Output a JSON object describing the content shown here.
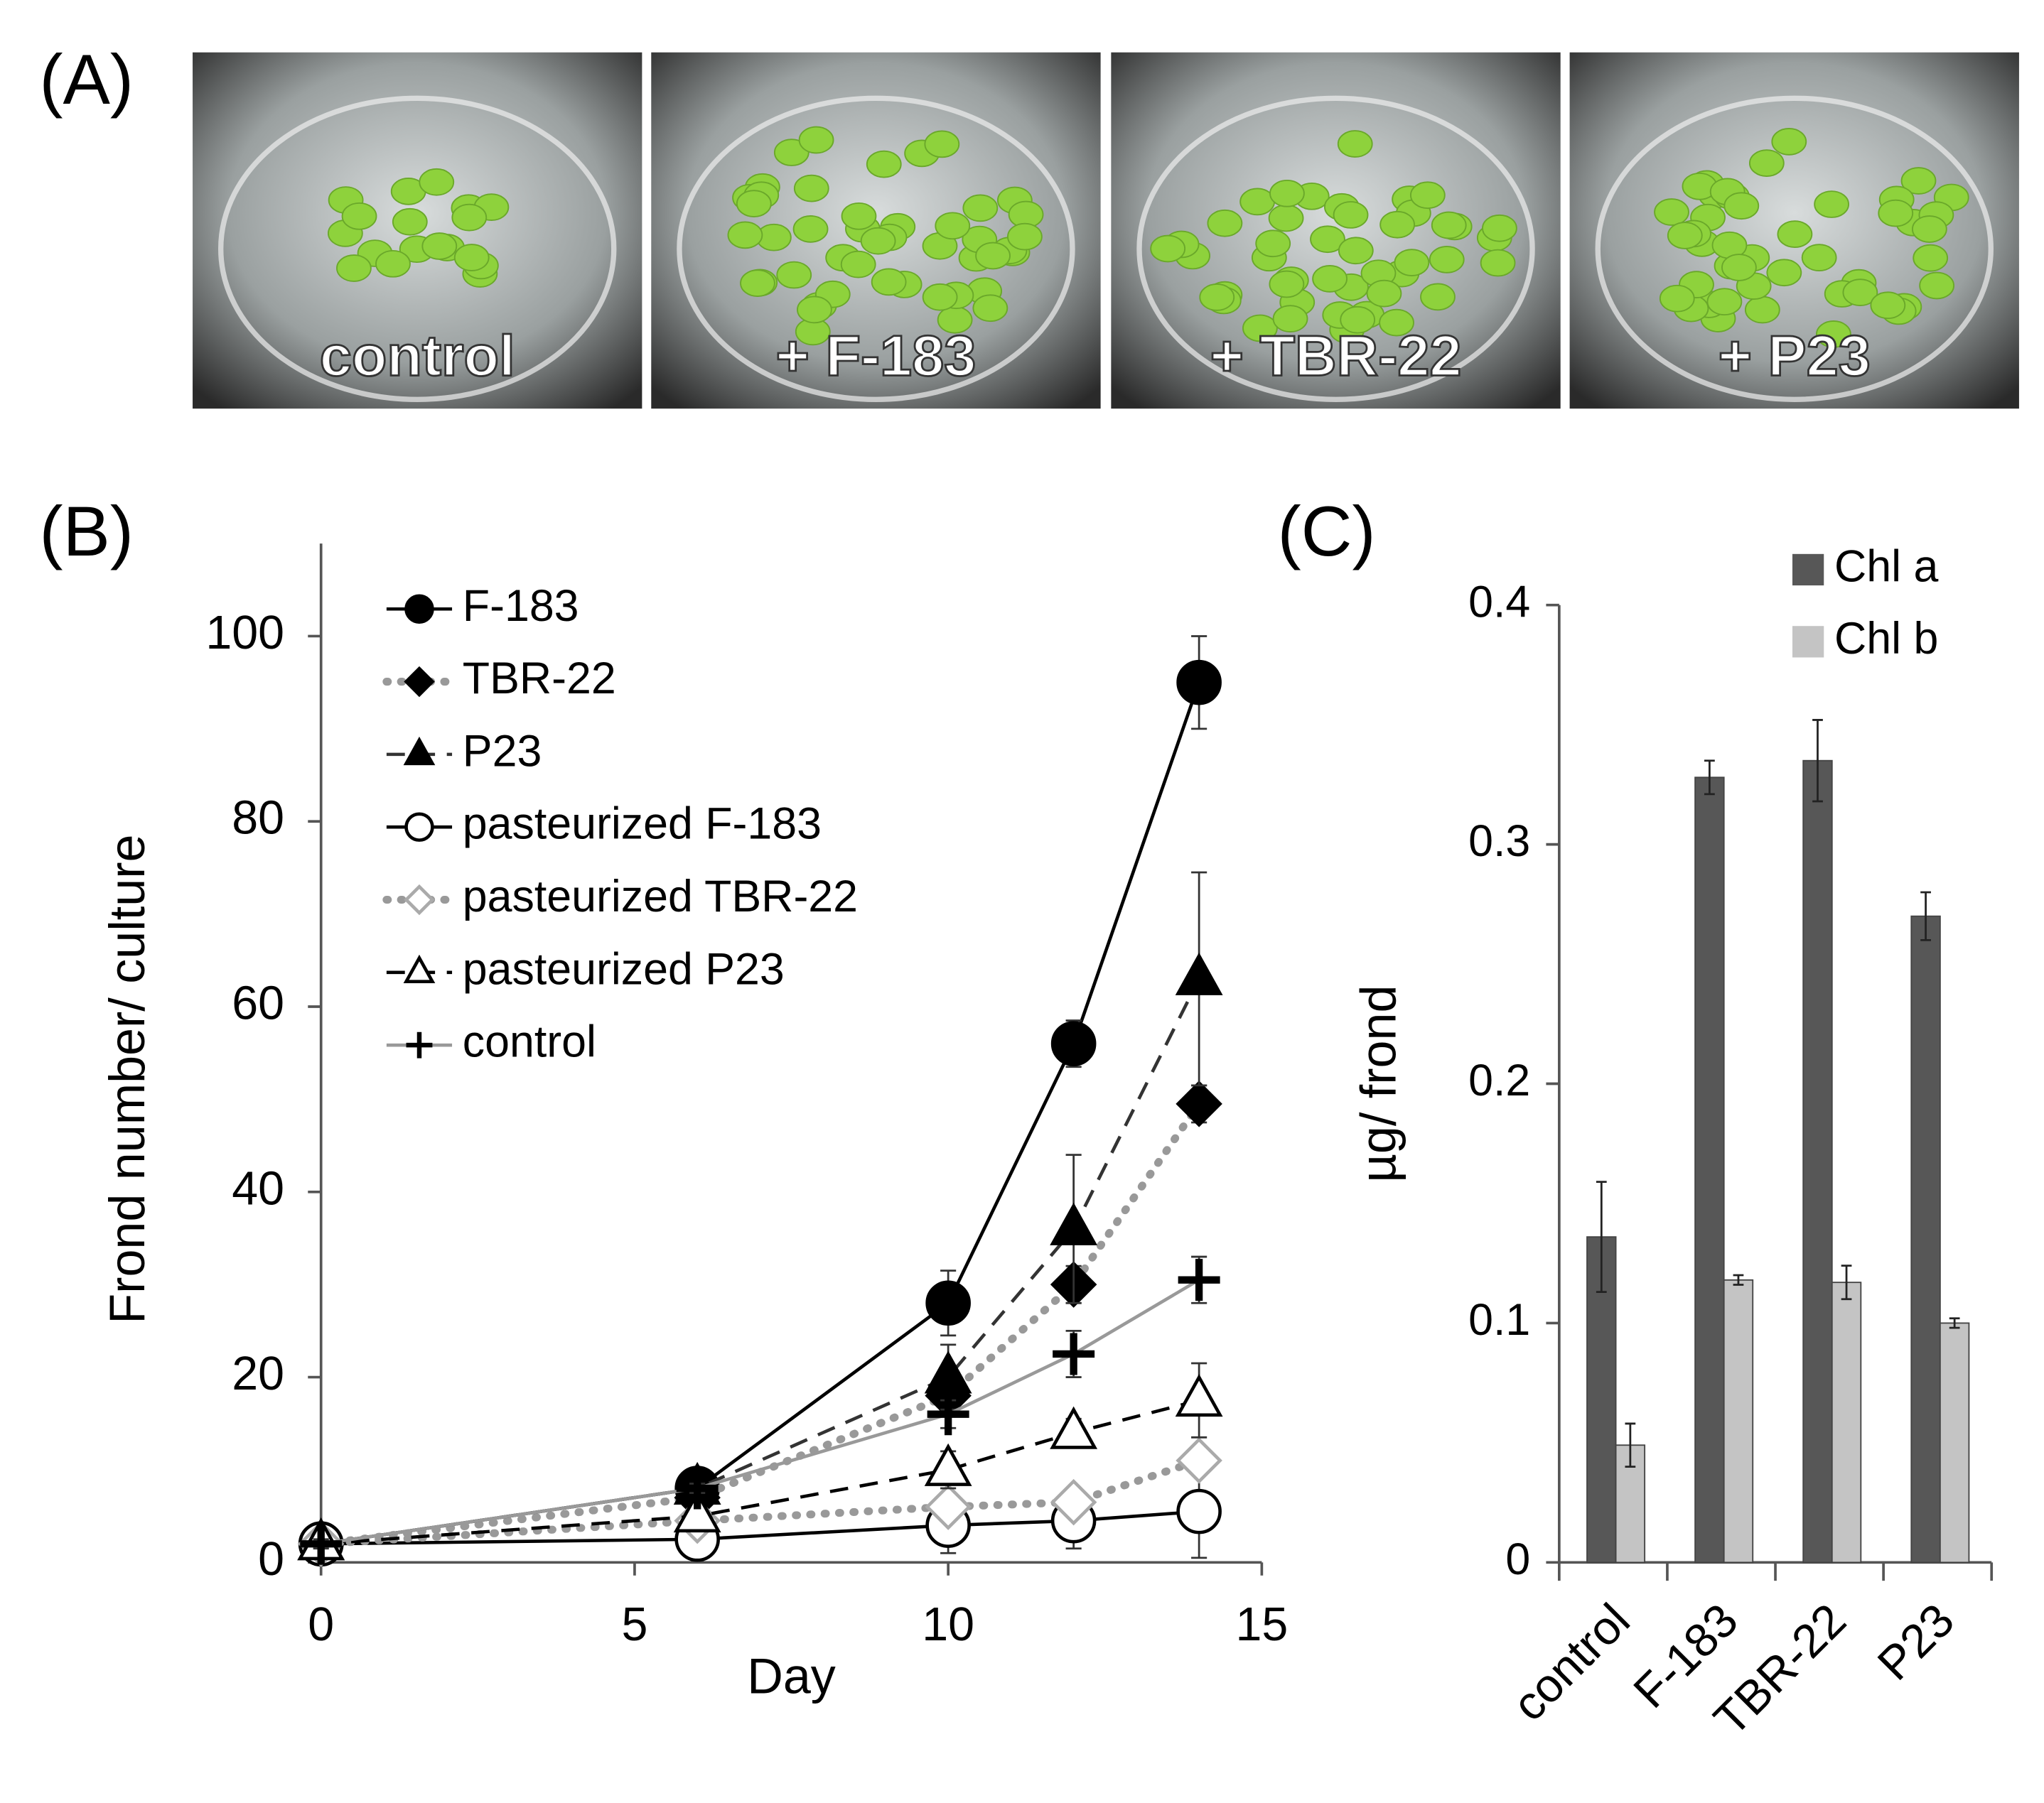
{
  "panel_labels": [
    "(A)",
    "(B)",
    "(C)"
  ],
  "photos": [
    "control",
    "+ F-183",
    "+ TBR-22",
    "+ P23"
  ],
  "chart_data": [
    {
      "type": "line",
      "xlabel": "Day",
      "ylabel": "Frond number/ culture",
      "x": [
        0,
        6,
        10,
        12,
        14
      ],
      "xlim": [
        0,
        15
      ],
      "ylim": [
        0,
        110
      ],
      "xticks": [
        0,
        5,
        10,
        15
      ],
      "yticks": [
        0,
        20,
        40,
        60,
        80,
        100
      ],
      "series": [
        {
          "name": "F-183",
          "color": "#000000",
          "marker": "circle",
          "filled": true,
          "line_style": "solid",
          "values": [
            2,
            8,
            28,
            56,
            95
          ],
          "errors": [
            0.5,
            1,
            3.5,
            2.5,
            5
          ]
        },
        {
          "name": "TBR-22",
          "color": "#999999",
          "marker": "diamond",
          "filled": true,
          "line_style": "dotted",
          "values": [
            2,
            7,
            18,
            30,
            49.5
          ],
          "errors": [
            0.5,
            1,
            2,
            2,
            2
          ]
        },
        {
          "name": "P23",
          "color": "#333333",
          "marker": "triangle",
          "filled": true,
          "line_style": "dashed",
          "values": [
            2,
            8,
            20,
            36,
            63
          ],
          "errors": [
            0.5,
            1,
            3.5,
            8,
            11.5
          ]
        },
        {
          "name": "pasteurized F-183",
          "color": "#000000",
          "marker": "circle",
          "filled": false,
          "line_style": "solid",
          "values": [
            2,
            2.5,
            4,
            4.5,
            5.5
          ],
          "errors": [
            0.5,
            0.5,
            3,
            3,
            5
          ]
        },
        {
          "name": "pasteurized TBR-22",
          "color": "#999999",
          "marker": "diamond",
          "filled": false,
          "line_style": "dotted",
          "values": [
            2,
            4.5,
            6,
            6.5,
            11
          ],
          "errors": [
            0.5,
            0.5,
            1,
            1,
            1.5
          ]
        },
        {
          "name": "pasteurized P23",
          "color": "#000000",
          "marker": "triangle",
          "filled": false,
          "line_style": "dashed",
          "values": [
            2,
            5,
            10,
            14,
            17.5
          ],
          "errors": [
            0.5,
            0.5,
            2,
            1.5,
            4
          ]
        },
        {
          "name": "control",
          "color": "#999999",
          "marker": "plus",
          "filled": true,
          "line_style": "solid",
          "values": [
            2,
            8,
            16,
            22.5,
            30.5
          ],
          "errors": [
            0.5,
            0.5,
            1.5,
            2.5,
            2.5
          ]
        }
      ]
    },
    {
      "type": "bar",
      "ylabel": "µg/ frond",
      "categories": [
        "control",
        "F-183",
        "TBR-22",
        "P23"
      ],
      "ylim": [
        0,
        0.4
      ],
      "yticks": [
        0,
        0.1,
        0.2,
        0.3,
        0.4
      ],
      "legend": "top-right",
      "series": [
        {
          "name": "Chl a",
          "color": "#575757",
          "values": [
            0.136,
            0.328,
            0.335,
            0.27
          ],
          "errors": [
            0.023,
            0.007,
            0.017,
            0.01
          ]
        },
        {
          "name": "Chl b",
          "color": "#c4c4c4",
          "values": [
            0.049,
            0.118,
            0.117,
            0.1
          ],
          "errors": [
            0.009,
            0.002,
            0.007,
            0.002
          ]
        }
      ]
    }
  ]
}
